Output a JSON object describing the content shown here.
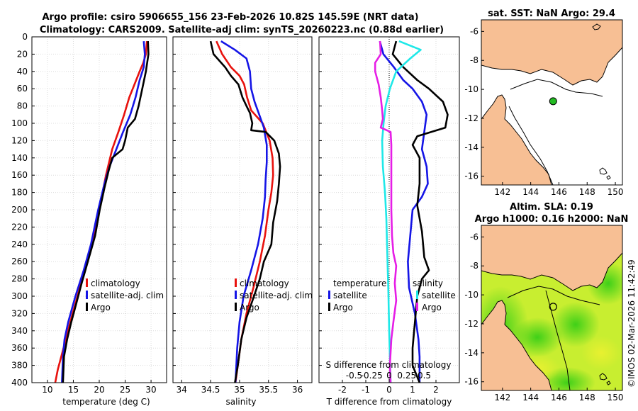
{
  "header": {
    "line1": "Argo profile: csiro 5906655_156 23-Feb-2026 10.82S 145.59E (NRT data)",
    "line2": "Climatology: CARS2009. Satellite-adj clim: synTS_20260223.nc (0.88d earlier)"
  },
  "watermark": "©IMOS 02-Mar-2026 11:42:49",
  "colors": {
    "red": "#e8120e",
    "blue": "#1515e6",
    "black": "#000000",
    "cyan": "#1ee8e8",
    "magenta": "#e61ee6",
    "land": "#f7bf94",
    "sea": "#ffffff"
  },
  "chart_data": [
    {
      "type": "line",
      "name": "temperature",
      "xlabel": "temperature (deg C)",
      "ylabel": "",
      "xlim": [
        7,
        33
      ],
      "ylim": [
        0,
        400
      ],
      "xticks": [
        "10",
        "15",
        "20",
        "25",
        "30"
      ],
      "yticks": [
        "0",
        "20",
        "40",
        "60",
        "80",
        "100",
        "120",
        "140",
        "160",
        "180",
        "200",
        "220",
        "240",
        "260",
        "280",
        "300",
        "320",
        "340",
        "360",
        "380",
        "400"
      ],
      "legend": [
        "climatology",
        "satellite-adj. clim",
        "Argo"
      ],
      "series": [
        {
          "name": "climatology",
          "color": "#e8120e",
          "points": [
            [
              29.2,
              5
            ],
            [
              29.0,
              20
            ],
            [
              28.5,
              30
            ],
            [
              27.8,
              40
            ],
            [
              26.8,
              55
            ],
            [
              25.8,
              70
            ],
            [
              24.8,
              90
            ],
            [
              23.7,
              110
            ],
            [
              22.5,
              130
            ],
            [
              21.3,
              160
            ],
            [
              20.0,
              200
            ],
            [
              18.7,
              240
            ],
            [
              17.2,
              270
            ],
            [
              15.8,
              300
            ],
            [
              14.4,
              330
            ],
            [
              13.1,
              360
            ],
            [
              12.0,
              385
            ],
            [
              11.5,
              400
            ]
          ]
        },
        {
          "name": "satellite-adj. clim",
          "color": "#1515e6",
          "points": [
            [
              28.6,
              5
            ],
            [
              28.8,
              20
            ],
            [
              28.6,
              35
            ],
            [
              27.8,
              50
            ],
            [
              27.0,
              70
            ],
            [
              26.0,
              90
            ],
            [
              24.6,
              110
            ],
            [
              23.3,
              130
            ],
            [
              22.0,
              150
            ],
            [
              21.0,
              170
            ],
            [
              19.8,
              200
            ],
            [
              18.4,
              240
            ],
            [
              17.0,
              270
            ],
            [
              15.4,
              300
            ],
            [
              14.0,
              330
            ],
            [
              13.3,
              350
            ],
            [
              13.0,
              370
            ],
            [
              12.8,
              400
            ]
          ]
        },
        {
          "name": "Argo",
          "color": "#000000",
          "points": [
            [
              29.4,
              5
            ],
            [
              29.5,
              20
            ],
            [
              29.0,
              40
            ],
            [
              28.3,
              60
            ],
            [
              27.6,
              80
            ],
            [
              26.9,
              95
            ],
            [
              25.5,
              105
            ],
            [
              25.0,
              120
            ],
            [
              24.5,
              130
            ],
            [
              22.5,
              140
            ],
            [
              21.8,
              155
            ],
            [
              21.0,
              175
            ],
            [
              20.1,
              200
            ],
            [
              19.2,
              230
            ],
            [
              17.8,
              260
            ],
            [
              16.6,
              285
            ],
            [
              15.5,
              310
            ],
            [
              14.6,
              330
            ],
            [
              13.8,
              350
            ],
            [
              13.2,
              370
            ],
            [
              13.0,
              400
            ]
          ]
        }
      ]
    },
    {
      "type": "line",
      "name": "salinity",
      "xlabel": "salinity",
      "xlim": [
        33.85,
        36.25
      ],
      "ylim": [
        0,
        400
      ],
      "xticks": [
        "34",
        "34.5",
        "35",
        "35.5",
        "36"
      ],
      "legend": [
        "climatology",
        "satellite-adj. clim",
        "Argo"
      ],
      "series": [
        {
          "name": "climatology",
          "color": "#e8120e",
          "points": [
            [
              34.6,
              5
            ],
            [
              34.7,
              20
            ],
            [
              34.85,
              35
            ],
            [
              35.0,
              45
            ],
            [
              35.08,
              55
            ],
            [
              35.13,
              70
            ],
            [
              35.2,
              85
            ],
            [
              35.4,
              100
            ],
            [
              35.52,
              120
            ],
            [
              35.57,
              140
            ],
            [
              35.58,
              160
            ],
            [
              35.55,
              180
            ],
            [
              35.5,
              200
            ],
            [
              35.44,
              230
            ],
            [
              35.35,
              260
            ],
            [
              35.24,
              290
            ],
            [
              35.12,
              320
            ],
            [
              35.03,
              350
            ],
            [
              34.97,
              380
            ],
            [
              34.93,
              400
            ]
          ]
        },
        {
          "name": "satellite-adj. clim",
          "color": "#1515e6",
          "points": [
            [
              34.68,
              5
            ],
            [
              34.92,
              15
            ],
            [
              35.12,
              25
            ],
            [
              35.18,
              40
            ],
            [
              35.2,
              60
            ],
            [
              35.26,
              75
            ],
            [
              35.34,
              90
            ],
            [
              35.42,
              105
            ],
            [
              35.47,
              125
            ],
            [
              35.47,
              145
            ],
            [
              35.45,
              165
            ],
            [
              35.44,
              185
            ],
            [
              35.4,
              210
            ],
            [
              35.32,
              240
            ],
            [
              35.2,
              270
            ],
            [
              35.07,
              300
            ],
            [
              35.0,
              330
            ],
            [
              34.96,
              360
            ],
            [
              34.93,
              400
            ]
          ]
        },
        {
          "name": "Argo",
          "color": "#000000",
          "points": [
            [
              34.5,
              5
            ],
            [
              34.55,
              20
            ],
            [
              34.75,
              35
            ],
            [
              34.85,
              45
            ],
            [
              34.98,
              55
            ],
            [
              35.05,
              70
            ],
            [
              35.12,
              80
            ],
            [
              35.18,
              88
            ],
            [
              35.22,
              100
            ],
            [
              35.2,
              108
            ],
            [
              35.45,
              110
            ],
            [
              35.6,
              120
            ],
            [
              35.68,
              135
            ],
            [
              35.7,
              150
            ],
            [
              35.68,
              170
            ],
            [
              35.65,
              190
            ],
            [
              35.58,
              215
            ],
            [
              35.55,
              240
            ],
            [
              35.42,
              260
            ],
            [
              35.35,
              280
            ],
            [
              35.25,
              300
            ],
            [
              35.12,
              325
            ],
            [
              35.03,
              350
            ],
            [
              34.97,
              380
            ],
            [
              34.92,
              400
            ]
          ]
        }
      ]
    },
    {
      "type": "line",
      "name": "difference-from-climatology",
      "xlabel": "T difference from climatology",
      "top_label": "S difference from climatology",
      "xlim": [
        -3,
        3
      ],
      "ylim": [
        0,
        400
      ],
      "xticks": [
        "-2",
        "-1",
        "0",
        "1",
        "2"
      ],
      "top_ticks": [
        "-0.5",
        "-0.25",
        "0",
        "0.25",
        "0.5"
      ],
      "legend_left_title": "temperature",
      "legend_right_title": "salinity",
      "legend_left": [
        "satellite",
        "Argo"
      ],
      "legend_right": [
        "satellite",
        "Argo"
      ],
      "series": [
        {
          "name": "T satellite",
          "color": "#1515e6",
          "points": [
            [
              -0.4,
              5
            ],
            [
              -0.25,
              20
            ],
            [
              0.2,
              35
            ],
            [
              0.6,
              50
            ],
            [
              1.0,
              60
            ],
            [
              1.4,
              75
            ],
            [
              1.6,
              90
            ],
            [
              1.5,
              110
            ],
            [
              1.4,
              130
            ],
            [
              1.6,
              150
            ],
            [
              1.65,
              170
            ],
            [
              1.4,
              185
            ],
            [
              1.0,
              200
            ],
            [
              0.9,
              230
            ],
            [
              0.8,
              260
            ],
            [
              0.85,
              290
            ],
            [
              1.1,
              320
            ],
            [
              1.25,
              350
            ],
            [
              1.3,
              370
            ],
            [
              1.3,
              400
            ]
          ]
        },
        {
          "name": "T Argo",
          "color": "#000000",
          "points": [
            [
              0.3,
              5
            ],
            [
              0.15,
              20
            ],
            [
              0.6,
              35
            ],
            [
              1.2,
              50
            ],
            [
              1.7,
              60
            ],
            [
              2.3,
              75
            ],
            [
              2.5,
              90
            ],
            [
              2.4,
              105
            ],
            [
              1.2,
              115
            ],
            [
              1.0,
              125
            ],
            [
              1.3,
              140
            ],
            [
              1.3,
              170
            ],
            [
              1.2,
              195
            ],
            [
              1.4,
              225
            ],
            [
              1.5,
              255
            ],
            [
              1.7,
              270
            ],
            [
              1.4,
              280
            ],
            [
              1.2,
              300
            ],
            [
              1.1,
              330
            ],
            [
              1.0,
              360
            ],
            [
              1.0,
              380
            ],
            [
              1.3,
              400
            ]
          ]
        },
        {
          "name": "S satellite",
          "color": "#1ee8e8",
          "points": [
            [
              0.14,
              5
            ],
            [
              0.45,
              15
            ],
            [
              0.3,
              25
            ],
            [
              0.1,
              40
            ],
            [
              0.01,
              60
            ],
            [
              -0.05,
              80
            ],
            [
              -0.08,
              100
            ],
            [
              -0.1,
              120
            ],
            [
              -0.09,
              150
            ],
            [
              -0.06,
              180
            ],
            [
              -0.04,
              210
            ],
            [
              -0.03,
              240
            ],
            [
              -0.02,
              270
            ],
            [
              -0.01,
              300
            ],
            [
              0.0,
              340
            ],
            [
              0.01,
              370
            ],
            [
              0.02,
              400
            ]
          ]
        },
        {
          "name": "S Argo",
          "color": "#e61ee6",
          "points": [
            [
              -0.13,
              5
            ],
            [
              -0.12,
              20
            ],
            [
              -0.2,
              30
            ],
            [
              -0.2,
              40
            ],
            [
              -0.15,
              55
            ],
            [
              -0.12,
              70
            ],
            [
              -0.1,
              85
            ],
            [
              -0.09,
              95
            ],
            [
              -0.12,
              105
            ],
            [
              0.02,
              110
            ],
            [
              0.03,
              125
            ],
            [
              0.03,
              150
            ],
            [
              0.03,
              175
            ],
            [
              0.03,
              200
            ],
            [
              0.04,
              230
            ],
            [
              0.06,
              250
            ],
            [
              0.1,
              265
            ],
            [
              0.08,
              285
            ],
            [
              0.1,
              305
            ],
            [
              0.06,
              330
            ],
            [
              0.03,
              350
            ],
            [
              0.01,
              380
            ],
            [
              0.02,
              400
            ]
          ]
        }
      ]
    },
    {
      "type": "map",
      "name": "sst-map",
      "title": "sat. SST: NaN Argo: 29.4",
      "xlim": [
        140.5,
        150.5
      ],
      "ylim": [
        -16.6,
        -5.2
      ],
      "xticks": [
        "142",
        "144",
        "146",
        "148",
        "150"
      ],
      "yticks": [
        "-6",
        "-8",
        "-10",
        "-12",
        "-14",
        "-16"
      ],
      "marker": {
        "lon": 145.59,
        "lat": -10.82,
        "fill": "#22bb22"
      }
    },
    {
      "type": "map",
      "name": "sla-map",
      "title_line1": "Altim. SLA: 0.19",
      "title_line2": "Argo h1000: 0.16 h2000: NaN",
      "xlim": [
        140.5,
        150.5
      ],
      "ylim": [
        -16.6,
        -5.2
      ],
      "xticks": [
        "142",
        "144",
        "146",
        "148",
        "150"
      ],
      "yticks": [
        "-6",
        "-8",
        "-10",
        "-12",
        "-14",
        "-16"
      ],
      "marker": {
        "lon": 145.59,
        "lat": -10.82,
        "fill": "none"
      }
    }
  ]
}
